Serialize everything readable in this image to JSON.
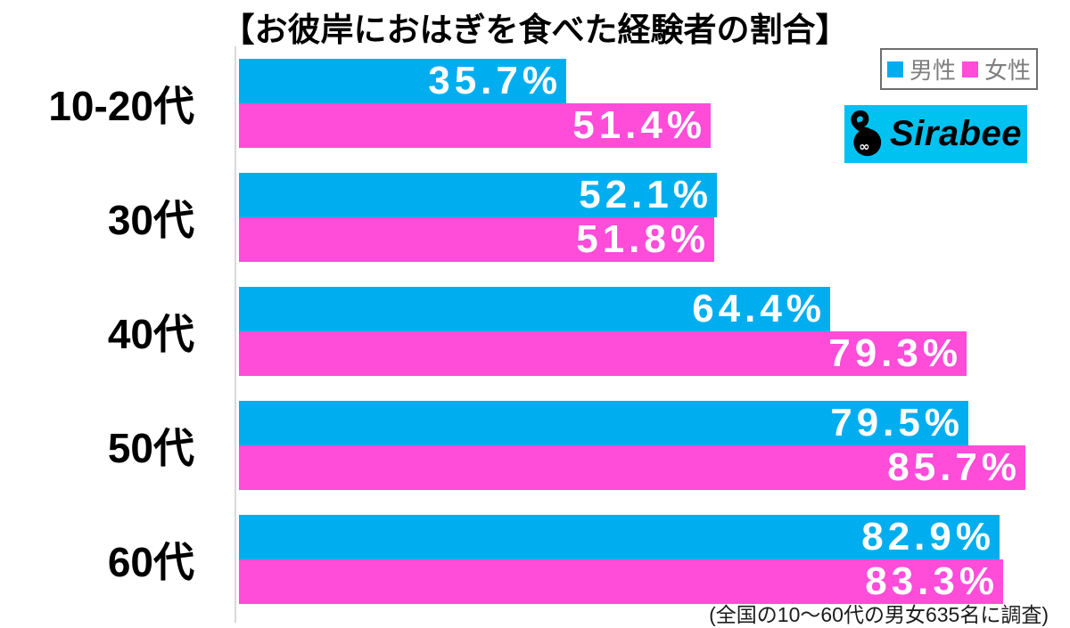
{
  "title": "【お彼岸におはぎを食べた経験者の割合】",
  "legend": {
    "items": [
      {
        "label": "男性",
        "color": "#00aeef"
      },
      {
        "label": "女性",
        "color": "#ff4cd9"
      }
    ]
  },
  "logo": {
    "text": "Sirabee",
    "background": "#00c2f0",
    "mascot_icon": "tadpole-infinity-eyes",
    "text_color": "#000000"
  },
  "footnote": "(全国の10〜60代の男女635名に調査)",
  "chart_data": {
    "type": "bar",
    "orientation": "horizontal",
    "title": "【お彼岸におはぎを食べた経験者の割合】",
    "categories": [
      "10-20代",
      "30代",
      "40代",
      "50代",
      "60代"
    ],
    "series": [
      {
        "name": "男性",
        "color": "#00aeef",
        "values": [
          35.7,
          52.1,
          64.4,
          79.5,
          82.9
        ]
      },
      {
        "name": "女性",
        "color": "#ff4cd9",
        "values": [
          51.4,
          51.8,
          79.3,
          85.7,
          83.3
        ]
      }
    ],
    "value_suffix": "%",
    "value_labels": "inside-end",
    "xlim": [
      0,
      86.6
    ],
    "grid": false,
    "axis_line_color": "#d9d9d9",
    "legend_position": "top-right",
    "annotation": "(全国の10〜60代の男女635名に調査)"
  }
}
